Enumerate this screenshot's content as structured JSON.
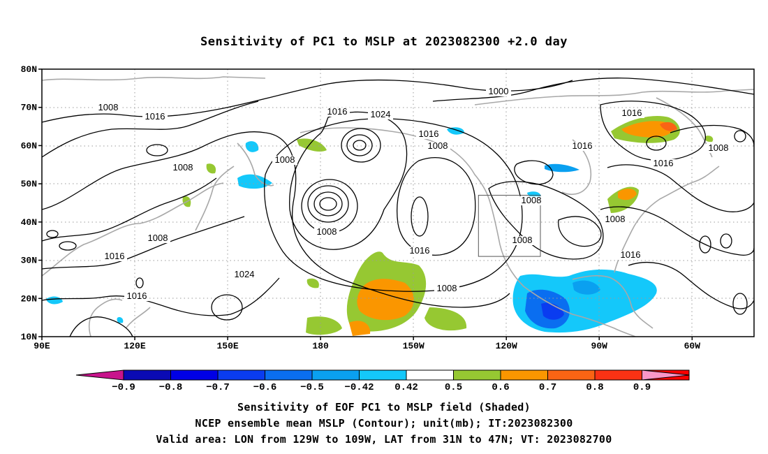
{
  "title": "Sensitivity of PC1 to MSLP at 2023082300 +2.0 day",
  "axes": {
    "lat_ticks": [
      "10N",
      "20N",
      "30N",
      "40N",
      "50N",
      "60N",
      "70N",
      "80N"
    ],
    "lon_ticks": [
      "90E",
      "120E",
      "150E",
      "180",
      "150W",
      "120W",
      "90W",
      "60W"
    ]
  },
  "contour_labels": [
    "1008",
    "1016",
    "1016",
    "1008",
    "1016",
    "1016",
    "1008",
    "1016",
    "1024",
    "1008",
    "1016",
    "1008",
    "1000",
    "1016",
    "1016",
    "1008",
    "1016",
    "1008",
    "1008",
    "1008",
    "1024",
    "1016",
    "1008",
    "1016",
    "1008",
    "1008"
  ],
  "colorbar": {
    "labels": [
      "-0.9",
      "-0.8",
      "-0.7",
      "-0.6",
      "-0.5",
      "-0.42",
      "0.42",
      "0.5",
      "0.6",
      "0.7",
      "0.8",
      "0.9"
    ],
    "colors": [
      "#0a0ab4",
      "#0000e6",
      "#0a3cf0",
      "#0a6ef0",
      "#0aa0f0",
      "#14c8fa",
      "#ffffff",
      "#96c832",
      "#fa9600",
      "#fa6414",
      "#fa3214",
      "#fa0000"
    ],
    "low_end_color": "#c8148c",
    "high_end_color": "#fa96c8"
  },
  "valid_box": {
    "lon_min": -129,
    "lon_max": -109,
    "lat_min": 31,
    "lat_max": 47
  },
  "footer": {
    "line1": "Sensitivity of EOF PC1 to MSLP field (Shaded)",
    "line2": "NCEP ensemble mean MSLP (Contour); unit(mb); IT:2023082300",
    "line3": "Valid area: LON from 129W to 109W, LAT from 31N to 47N; VT: 2023082700"
  }
}
